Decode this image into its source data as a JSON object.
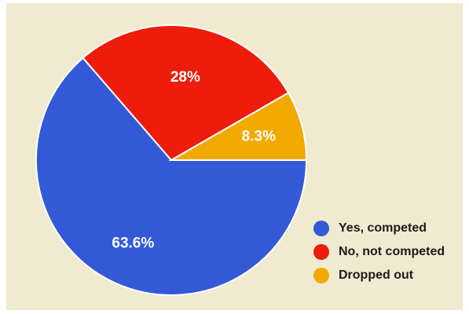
{
  "chart_data": {
    "type": "pie",
    "title": "",
    "slices": [
      {
        "label": "Yes, competed",
        "value": 63.6,
        "display": "63.6%",
        "color": "#3359d6"
      },
      {
        "label": "No, not competed",
        "value": 28,
        "display": "28%",
        "color": "#ee1c0a"
      },
      {
        "label": "Dropped out",
        "value": 8.3,
        "display": "8.3%",
        "color": "#f2a900"
      }
    ],
    "legend_position": "bottom-right",
    "background": "#f0ead0"
  }
}
